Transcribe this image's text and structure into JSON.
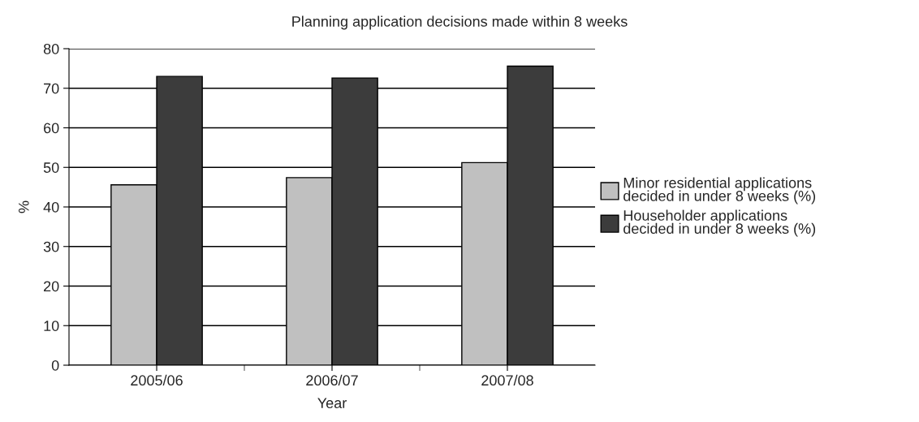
{
  "chart_data": {
    "type": "bar",
    "title": "Planning application decisions made within 8 weeks",
    "xlabel": "Year",
    "ylabel": "%",
    "categories": [
      "2005/06",
      "2006/07",
      "2007/08"
    ],
    "series": [
      {
        "name": "Minor residential applications decided in under 8 weeks (%)",
        "color": "#c0c0c0",
        "values": [
          45.6,
          47.4,
          51.2
        ]
      },
      {
        "name": "Householder applications decided in under 8 weeks (%)",
        "color": "#3c3c3c",
        "values": [
          73.0,
          72.6,
          75.6
        ]
      }
    ],
    "ylim": [
      0,
      80
    ],
    "yticks": [
      0,
      10,
      20,
      30,
      40,
      50,
      60,
      70,
      80
    ],
    "grid": "y",
    "legend": "right"
  }
}
